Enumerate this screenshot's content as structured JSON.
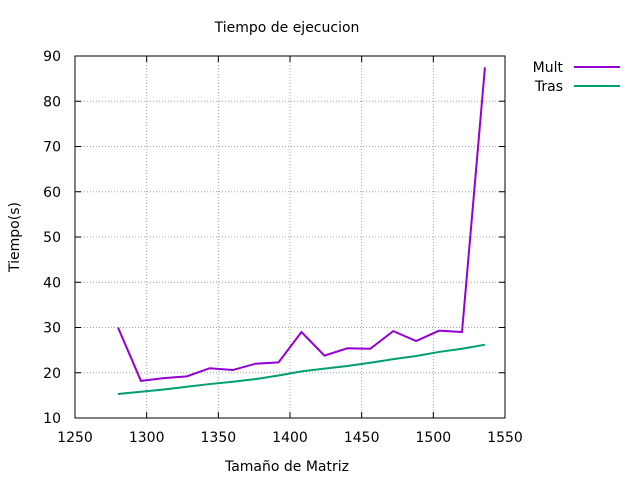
{
  "chart_data": {
    "type": "line",
    "title": "Tiempo de ejecucion",
    "xlabel": "Tamaño de Matriz",
    "ylabel": "Tiempo(s)",
    "xlim": [
      1250,
      1550
    ],
    "ylim": [
      10,
      90
    ],
    "xticks": [
      1250,
      1300,
      1350,
      1400,
      1450,
      1500,
      1550
    ],
    "yticks": [
      10,
      20,
      30,
      40,
      50,
      60,
      70,
      80,
      90
    ],
    "grid": true,
    "legend_position": "top-right-outside",
    "series": [
      {
        "name": "Mult",
        "color": "#9400d3",
        "x": [
          1280,
          1296,
          1312,
          1328,
          1344,
          1360,
          1376,
          1392,
          1408,
          1424,
          1440,
          1456,
          1472,
          1488,
          1504,
          1520,
          1536
        ],
        "y": [
          30.0,
          18.2,
          18.8,
          19.2,
          21.0,
          20.6,
          22.0,
          22.3,
          29.0,
          23.8,
          25.4,
          25.3,
          29.2,
          27.0,
          29.3,
          29.0,
          87.5
        ]
      },
      {
        "name": "Tras",
        "color": "#009e73",
        "x": [
          1280,
          1296,
          1312,
          1328,
          1344,
          1360,
          1376,
          1392,
          1408,
          1424,
          1440,
          1456,
          1472,
          1488,
          1504,
          1520,
          1536
        ],
        "y": [
          15.3,
          15.8,
          16.3,
          16.9,
          17.5,
          18.0,
          18.6,
          19.4,
          20.3,
          20.9,
          21.5,
          22.2,
          23.0,
          23.7,
          24.6,
          25.3,
          26.2
        ]
      }
    ]
  }
}
